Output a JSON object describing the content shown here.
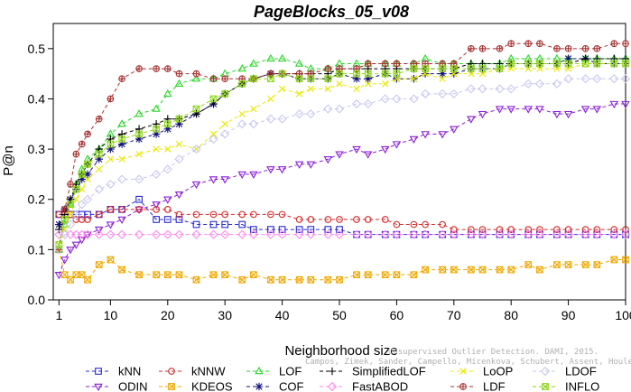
{
  "chart_data": {
    "type": "line",
    "title": "PageBlocks_05_v08",
    "xlabel": "Neighborhood size",
    "ylabel": "P@n",
    "xlim": [
      0,
      100
    ],
    "ylim": [
      0,
      0.55
    ],
    "xticks": [
      1,
      10,
      20,
      30,
      40,
      50,
      60,
      70,
      80,
      90,
      100
    ],
    "yticks": [
      0.0,
      0.1,
      0.2,
      0.3,
      0.4,
      0.5
    ],
    "x_anchors": [
      1,
      2,
      3,
      4,
      5,
      6,
      8,
      10,
      12,
      15,
      18,
      20,
      22,
      25,
      28,
      30,
      33,
      35,
      38,
      40,
      43,
      45,
      48,
      50,
      53,
      55,
      58,
      60,
      63,
      65,
      68,
      70,
      73,
      75,
      78,
      80,
      83,
      85,
      88,
      90,
      93,
      95,
      98,
      100
    ],
    "series": [
      {
        "name": "kNN",
        "color": "#2a2ad6",
        "marker": "square",
        "values": [
          0.17,
          0.17,
          0.17,
          0.17,
          0.17,
          0.17,
          0.17,
          0.18,
          0.18,
          0.2,
          0.16,
          0.16,
          0.16,
          0.15,
          0.15,
          0.15,
          0.15,
          0.14,
          0.14,
          0.14,
          0.14,
          0.14,
          0.14,
          0.14,
          0.13,
          0.13,
          0.13,
          0.13,
          0.13,
          0.13,
          0.13,
          0.13,
          0.13,
          0.13,
          0.13,
          0.13,
          0.13,
          0.13,
          0.13,
          0.13,
          0.13,
          0.13,
          0.13,
          0.13
        ]
      },
      {
        "name": "ODIN",
        "color": "#8a1fd6",
        "marker": "triangle-down",
        "values": [
          0.05,
          0.08,
          0.1,
          0.11,
          0.12,
          0.13,
          0.14,
          0.15,
          0.16,
          0.18,
          0.19,
          0.2,
          0.21,
          0.23,
          0.24,
          0.24,
          0.25,
          0.25,
          0.26,
          0.26,
          0.27,
          0.27,
          0.28,
          0.29,
          0.3,
          0.29,
          0.3,
          0.31,
          0.32,
          0.33,
          0.33,
          0.34,
          0.36,
          0.37,
          0.38,
          0.38,
          0.38,
          0.38,
          0.37,
          0.37,
          0.38,
          0.38,
          0.39,
          0.39
        ]
      },
      {
        "name": "kNNW",
        "color": "#d62a2a",
        "marker": "circle",
        "values": [
          0.17,
          0.17,
          0.17,
          0.16,
          0.16,
          0.16,
          0.17,
          0.18,
          0.18,
          0.18,
          0.18,
          0.18,
          0.17,
          0.17,
          0.17,
          0.17,
          0.17,
          0.17,
          0.17,
          0.17,
          0.16,
          0.16,
          0.16,
          0.16,
          0.16,
          0.16,
          0.16,
          0.15,
          0.15,
          0.15,
          0.15,
          0.14,
          0.14,
          0.14,
          0.14,
          0.14,
          0.14,
          0.14,
          0.14,
          0.14,
          0.14,
          0.14,
          0.14,
          0.14
        ]
      },
      {
        "name": "KDEOS",
        "color": "#f0a800",
        "marker": "square-x",
        "values": [
          0.1,
          0.05,
          0.04,
          0.05,
          0.05,
          0.04,
          0.07,
          0.08,
          0.06,
          0.05,
          0.05,
          0.05,
          0.05,
          0.04,
          0.05,
          0.05,
          0.04,
          0.05,
          0.04,
          0.04,
          0.04,
          0.04,
          0.04,
          0.04,
          0.05,
          0.05,
          0.05,
          0.05,
          0.05,
          0.06,
          0.06,
          0.06,
          0.06,
          0.06,
          0.06,
          0.06,
          0.07,
          0.06,
          0.07,
          0.07,
          0.07,
          0.07,
          0.08,
          0.08
        ]
      },
      {
        "name": "LOF",
        "color": "#2ad62a",
        "marker": "triangle-up",
        "values": [
          0.1,
          0.15,
          0.19,
          0.23,
          0.26,
          0.28,
          0.3,
          0.33,
          0.35,
          0.37,
          0.38,
          0.41,
          0.43,
          0.44,
          0.44,
          0.45,
          0.46,
          0.47,
          0.48,
          0.48,
          0.47,
          0.46,
          0.46,
          0.47,
          0.47,
          0.47,
          0.47,
          0.47,
          0.47,
          0.48,
          0.47,
          0.47,
          0.47,
          0.47,
          0.47,
          0.48,
          0.48,
          0.48,
          0.48,
          0.48,
          0.48,
          0.48,
          0.48,
          0.48
        ]
      },
      {
        "name": "COF",
        "color": "#12127a",
        "marker": "asterisk",
        "values": [
          0.15,
          0.18,
          0.2,
          0.22,
          0.24,
          0.25,
          0.28,
          0.3,
          0.31,
          0.32,
          0.33,
          0.34,
          0.35,
          0.37,
          0.39,
          0.41,
          0.43,
          0.44,
          0.45,
          0.45,
          0.44,
          0.44,
          0.44,
          0.45,
          0.44,
          0.44,
          0.45,
          0.44,
          0.44,
          0.45,
          0.45,
          0.45,
          0.46,
          0.46,
          0.46,
          0.47,
          0.47,
          0.47,
          0.47,
          0.48,
          0.48,
          0.47,
          0.47,
          0.47
        ]
      },
      {
        "name": "SimplifiedLOF",
        "color": "#000000",
        "marker": "plus",
        "values": [
          0.14,
          0.17,
          0.2,
          0.23,
          0.25,
          0.27,
          0.3,
          0.32,
          0.33,
          0.34,
          0.35,
          0.36,
          0.36,
          0.37,
          0.39,
          0.41,
          0.43,
          0.44,
          0.45,
          0.45,
          0.45,
          0.45,
          0.45,
          0.46,
          0.46,
          0.46,
          0.46,
          0.46,
          0.46,
          0.46,
          0.46,
          0.46,
          0.47,
          0.47,
          0.47,
          0.47,
          0.47,
          0.47,
          0.47,
          0.47,
          0.48,
          0.48,
          0.48,
          0.48
        ]
      },
      {
        "name": "FastABOD",
        "color": "#ff88ee",
        "marker": "diamond",
        "values": [
          0.13,
          0.13,
          0.13,
          0.13,
          0.13,
          0.13,
          0.13,
          0.13,
          0.13,
          0.13,
          0.13,
          0.13,
          0.13,
          0.13,
          0.13,
          0.13,
          0.13,
          0.13,
          0.13,
          0.13,
          0.13,
          0.13,
          0.13,
          0.13,
          0.13,
          0.13,
          0.13,
          0.13,
          0.13,
          0.13,
          0.13,
          0.13,
          0.13,
          0.13,
          0.13,
          0.13,
          0.13,
          0.13,
          0.13,
          0.13,
          0.13,
          0.13,
          0.13,
          0.13
        ]
      },
      {
        "name": "LoOP",
        "color": "#e8e800",
        "marker": "x",
        "values": [
          0.11,
          0.14,
          0.17,
          0.2,
          0.22,
          0.24,
          0.26,
          0.28,
          0.28,
          0.29,
          0.3,
          0.3,
          0.31,
          0.3,
          0.33,
          0.35,
          0.37,
          0.38,
          0.4,
          0.42,
          0.41,
          0.42,
          0.42,
          0.43,
          0.42,
          0.43,
          0.43,
          0.44,
          0.44,
          0.45,
          0.44,
          0.45,
          0.45,
          0.45,
          0.46,
          0.46,
          0.46,
          0.46,
          0.46,
          0.46,
          0.47,
          0.47,
          0.47,
          0.47
        ]
      },
      {
        "name": "LDF",
        "color": "#a83232",
        "marker": "circle-plus",
        "values": [
          0.1,
          0.18,
          0.23,
          0.29,
          0.31,
          0.33,
          0.36,
          0.4,
          0.44,
          0.46,
          0.46,
          0.46,
          0.45,
          0.45,
          0.44,
          0.44,
          0.44,
          0.44,
          0.45,
          0.45,
          0.45,
          0.45,
          0.46,
          0.46,
          0.46,
          0.47,
          0.47,
          0.47,
          0.47,
          0.47,
          0.47,
          0.47,
          0.5,
          0.5,
          0.5,
          0.51,
          0.51,
          0.51,
          0.5,
          0.5,
          0.5,
          0.5,
          0.51,
          0.51
        ]
      },
      {
        "name": "LDOF",
        "color": "#c8c8f0",
        "marker": "diamond",
        "values": [
          0.1,
          0.13,
          0.15,
          0.17,
          0.19,
          0.2,
          0.22,
          0.23,
          0.24,
          0.24,
          0.25,
          0.26,
          0.28,
          0.3,
          0.32,
          0.33,
          0.35,
          0.35,
          0.36,
          0.36,
          0.37,
          0.37,
          0.38,
          0.38,
          0.39,
          0.39,
          0.4,
          0.4,
          0.4,
          0.41,
          0.41,
          0.41,
          0.42,
          0.42,
          0.42,
          0.42,
          0.43,
          0.43,
          0.43,
          0.44,
          0.44,
          0.44,
          0.44,
          0.44
        ]
      },
      {
        "name": "INFLO",
        "color": "#8fd61a",
        "marker": "square-x",
        "values": [
          0.11,
          0.16,
          0.19,
          0.22,
          0.25,
          0.27,
          0.29,
          0.31,
          0.32,
          0.33,
          0.34,
          0.35,
          0.36,
          0.38,
          0.4,
          0.41,
          0.43,
          0.44,
          0.44,
          0.45,
          0.44,
          0.44,
          0.44,
          0.45,
          0.45,
          0.45,
          0.45,
          0.45,
          0.46,
          0.46,
          0.46,
          0.46,
          0.46,
          0.46,
          0.46,
          0.47,
          0.47,
          0.47,
          0.47,
          0.47,
          0.47,
          0.47,
          0.47,
          0.47
        ]
      }
    ],
    "legend": {
      "position": "bottom",
      "columns": 6
    }
  },
  "credit": {
    "line1": "Unsupervised Outlier Detection. DAMI, 2015.",
    "line2": "Campos, Zimek, Sander, Campello, Micenkova, Schubert, Assent, Houle"
  }
}
